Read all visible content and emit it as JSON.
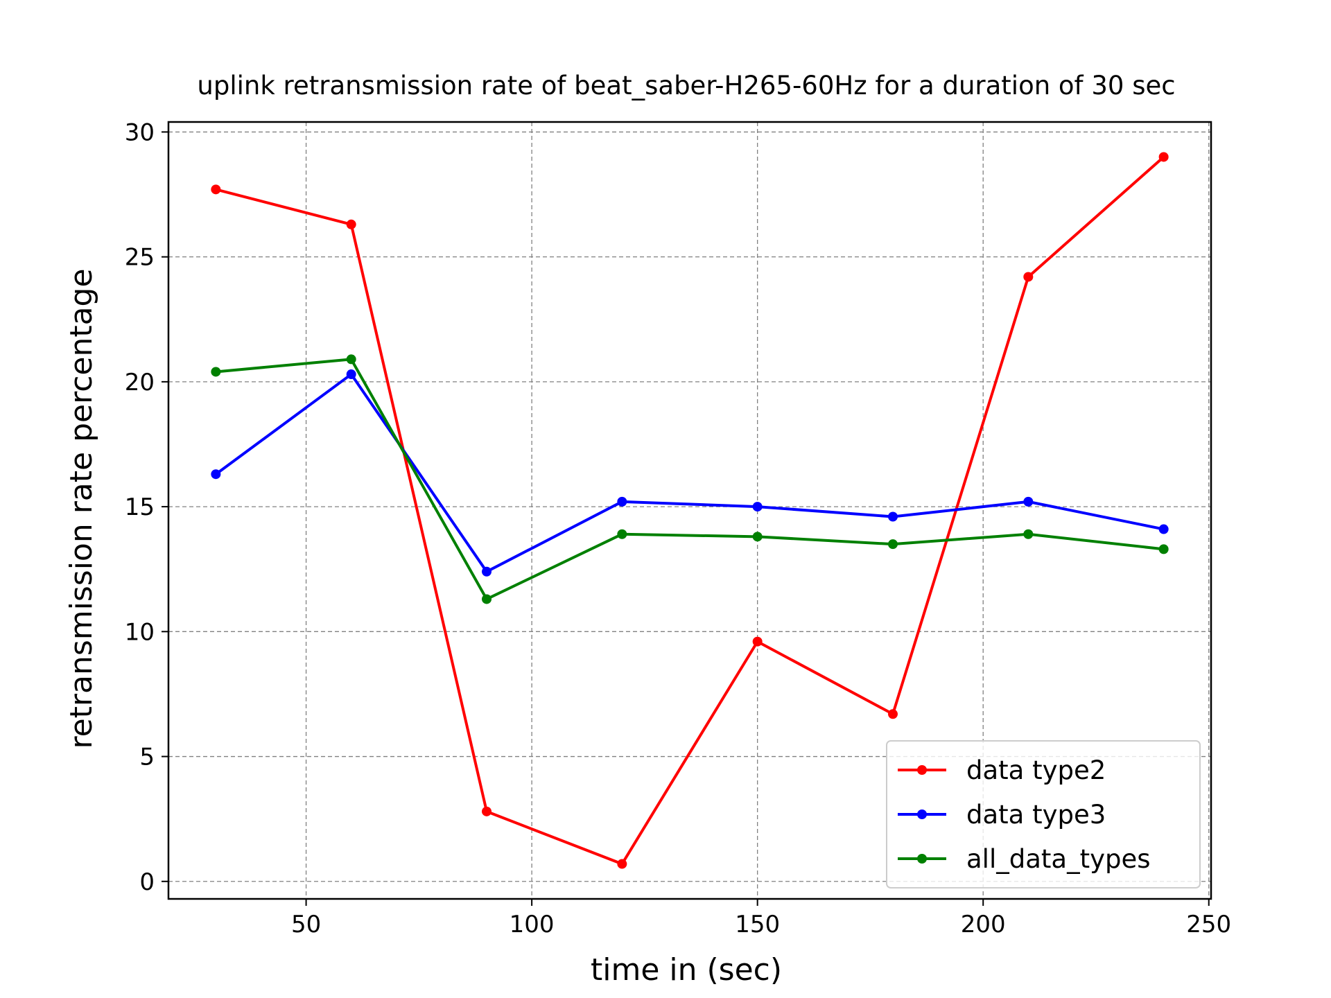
{
  "chart_data": {
    "type": "line",
    "title": "uplink retransmission rate of beat_saber-H265-60Hz for a duration of 30 sec",
    "xlabel": "time in (sec)",
    "ylabel": "retransmission rate percentage",
    "xlim": [
      19.5,
      250.5
    ],
    "ylim": [
      -0.7,
      30.4
    ],
    "xticks": [
      50,
      100,
      150,
      200,
      250
    ],
    "yticks": [
      0,
      5,
      10,
      15,
      20,
      25,
      30
    ],
    "grid": true,
    "legend_position": "lower right",
    "x": [
      30,
      60,
      90,
      120,
      150,
      180,
      210,
      240
    ],
    "series": [
      {
        "name": "data type2",
        "color": "#ff0000",
        "marker": "circle",
        "values": [
          27.7,
          26.3,
          2.8,
          0.7,
          9.6,
          6.7,
          24.2,
          29.0
        ]
      },
      {
        "name": "data type3",
        "color": "#0000ff",
        "marker": "circle",
        "values": [
          16.3,
          20.3,
          12.4,
          15.2,
          15.0,
          14.6,
          15.2,
          14.1
        ]
      },
      {
        "name": "all_data_types",
        "color": "#008000",
        "marker": "circle",
        "values": [
          20.4,
          20.9,
          11.3,
          13.9,
          13.8,
          13.5,
          13.9,
          13.3
        ]
      }
    ]
  }
}
